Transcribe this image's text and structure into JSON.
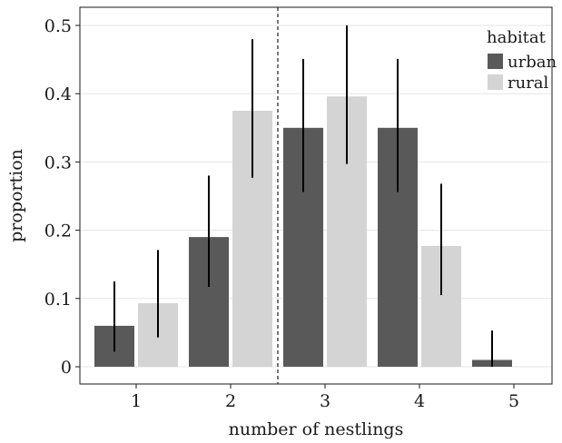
{
  "chart_data": {
    "type": "bar",
    "xlabel": "number of nestlings",
    "ylabel": "proportion",
    "categories": [
      "1",
      "2",
      "3",
      "4",
      "5"
    ],
    "ylim": [
      0,
      0.52
    ],
    "yticks": [
      "0",
      "0.1",
      "0.2",
      "0.3",
      "0.4",
      "0.5"
    ],
    "grid": "horizontal",
    "legend": {
      "title": "habitat",
      "position": "top-right"
    },
    "reference_line": {
      "x_between": [
        "2",
        "3"
      ],
      "style": "dashed"
    },
    "series": [
      {
        "name": "urban",
        "color": "#595959",
        "values": [
          0.06,
          0.19,
          0.35,
          0.35,
          0.01
        ],
        "error_low": [
          0.022,
          0.117,
          0.256,
          0.256,
          0.0
        ],
        "error_high": [
          0.125,
          0.28,
          0.451,
          0.451,
          0.053
        ]
      },
      {
        "name": "rural",
        "color": "#d4d4d4",
        "values": [
          0.093,
          0.375,
          0.396,
          0.177,
          null
        ],
        "error_low": [
          0.043,
          0.277,
          0.297,
          0.105,
          null
        ],
        "error_high": [
          0.171,
          0.48,
          0.5,
          0.268,
          null
        ]
      }
    ]
  }
}
